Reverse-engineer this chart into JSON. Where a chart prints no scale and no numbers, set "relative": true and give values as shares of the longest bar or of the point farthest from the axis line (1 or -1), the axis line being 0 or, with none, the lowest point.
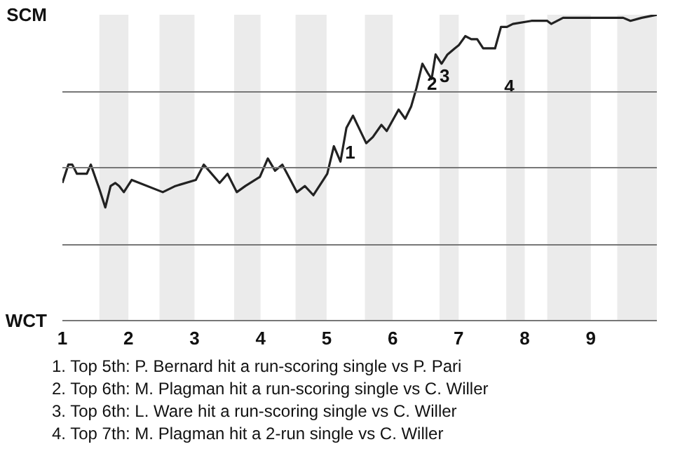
{
  "chart_data": {
    "type": "line",
    "relative": true,
    "x": [
      1.0,
      1.09,
      1.15,
      1.22,
      1.37,
      1.43,
      1.56,
      1.65,
      1.73,
      1.8,
      1.86,
      1.93,
      2.05,
      2.52,
      2.71,
      3.02,
      3.14,
      3.38,
      3.5,
      3.64,
      3.77,
      3.99,
      4.11,
      4.22,
      4.33,
      4.55,
      4.67,
      4.8,
      5.01,
      5.11,
      5.21,
      5.3,
      5.4,
      5.6,
      5.7,
      5.83,
      5.91,
      6.09,
      6.19,
      6.28,
      6.36,
      6.45,
      6.53,
      6.59,
      6.65,
      6.74,
      6.83,
      6.94,
      7.0,
      7.1,
      7.19,
      7.28,
      7.37,
      7.55,
      7.64,
      7.73,
      7.82,
      8.1,
      8.34,
      8.4,
      8.58,
      9.02,
      9.49,
      9.6,
      9.77,
      10.0
    ],
    "series": [
      {
        "color": "#222222",
        "values": [
          0.45,
          0.51,
          0.51,
          0.48,
          0.48,
          0.51,
          0.43,
          0.37,
          0.44,
          0.45,
          0.44,
          0.42,
          0.46,
          0.42,
          0.44,
          0.46,
          0.51,
          0.45,
          0.48,
          0.42,
          0.44,
          0.47,
          0.53,
          0.49,
          0.51,
          0.42,
          0.44,
          0.41,
          0.48,
          0.57,
          0.52,
          0.63,
          0.67,
          0.58,
          0.6,
          0.64,
          0.62,
          0.69,
          0.66,
          0.7,
          0.76,
          0.84,
          0.81,
          0.79,
          0.87,
          0.84,
          0.87,
          0.89,
          0.9,
          0.93,
          0.92,
          0.92,
          0.89,
          0.89,
          0.96,
          0.96,
          0.97,
          0.98,
          0.98,
          0.97,
          0.99,
          0.99,
          0.99,
          0.98,
          0.99,
          1.0
        ]
      }
    ],
    "xlim": [
      1,
      10
    ],
    "xticks": [
      1,
      2,
      3,
      4,
      5,
      6,
      7,
      8,
      9
    ],
    "grid": "y",
    "marker": "none",
    "line_style": "solid",
    "bands": [
      {
        "axis": "x",
        "from": 1.56,
        "to": 2,
        "color": "#ebebeb"
      },
      {
        "axis": "x",
        "from": 2.47,
        "to": 3,
        "color": "#ebebeb"
      },
      {
        "axis": "x",
        "from": 3.6,
        "to": 4,
        "color": "#ebebeb"
      },
      {
        "axis": "x",
        "from": 4.53,
        "to": 5,
        "color": "#ebebeb"
      },
      {
        "axis": "x",
        "from": 5.58,
        "to": 6,
        "color": "#ebebeb"
      },
      {
        "axis": "x",
        "from": 6.71,
        "to": 7,
        "color": "#ebebeb"
      },
      {
        "axis": "x",
        "from": 7.72,
        "to": 8,
        "color": "#ebebeb"
      },
      {
        "axis": "x",
        "from": 8.34,
        "to": 9,
        "color": "#ebebeb"
      },
      {
        "axis": "x",
        "from": 9.4,
        "to": 10,
        "color": "#ebebeb"
      }
    ],
    "annotations": [
      "SCM",
      "WCT",
      {
        "text": "1",
        "x": 5.28,
        "y": 0.55
      },
      {
        "text": "2",
        "x": 6.52,
        "y": 0.775
      },
      {
        "text": "3",
        "x": 6.71,
        "y": 0.8
      },
      {
        "text": "4",
        "x": 7.69,
        "y": 0.765
      },
      "1. Top 5th: P. Bernard hit a run-scoring single vs P. Pari",
      "2. Top 6th: M. Plagman hit a run-scoring single vs C. Willer",
      "3. Top 6th: L. Ware hit a run-scoring single vs C. Willer",
      "4. Top 7th: M. Plagman hit a 2-run single vs C. Willer"
    ]
  }
}
